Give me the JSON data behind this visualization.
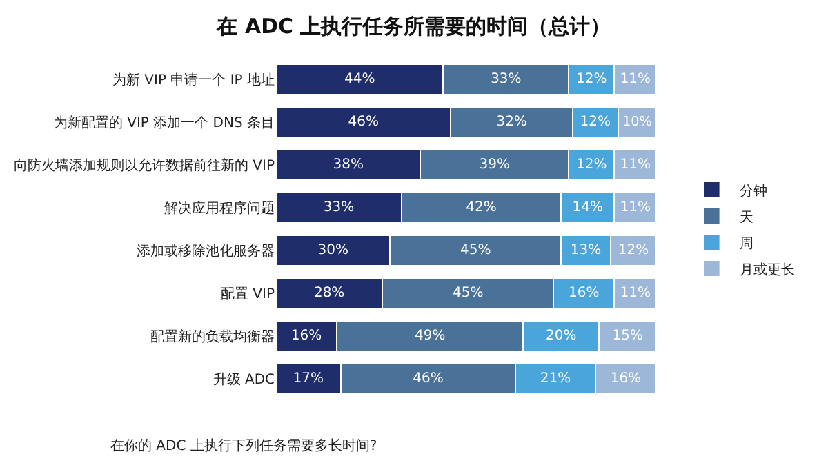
{
  "chart_data": {
    "type": "bar",
    "orientation": "horizontal",
    "stacked": true,
    "legend": "right",
    "title": "在 ADC 上执行任务所需要的时间（总计）",
    "categories": [
      "为新 VIP 申请一个 IP 地址",
      "为新配置的 VIP 添加一个 DNS 条目",
      "向防火墙添加规则以允许数据前往新的 VIP",
      "解决应用程序问题",
      "添加或移除池化服务器",
      "配置 VIP",
      "配置新的负载均衡器",
      "升级 ADC"
    ],
    "series": [
      {
        "name": "分钟",
        "color": "#1f2d6b",
        "values": [
          44,
          46,
          38,
          33,
          30,
          28,
          16,
          17
        ],
        "value_labels": [
          "44%",
          "46%",
          "38%",
          "33%",
          "30%",
          "28%",
          "16%",
          "17%"
        ]
      },
      {
        "name": "天",
        "color": "#4a7198",
        "values": [
          33,
          32,
          39,
          42,
          45,
          45,
          49,
          46
        ],
        "value_labels": [
          "33%",
          "32%",
          "39%",
          "42%",
          "45%",
          "45%",
          "49%",
          "46%"
        ]
      },
      {
        "name": "周",
        "color": "#4aa6da",
        "values": [
          12,
          12,
          12,
          14,
          13,
          16,
          20,
          21
        ],
        "value_labels": [
          "12%",
          "12%",
          "12%",
          "14%",
          "13%",
          "16%",
          "20%",
          "21%"
        ]
      },
      {
        "name": "月或更长",
        "color": "#9db7d9",
        "values": [
          11,
          10,
          11,
          11,
          12,
          11,
          15,
          16
        ],
        "value_labels": [
          "11%",
          "10%",
          "11%",
          "11%",
          "12%",
          "11%",
          "15%",
          "16%"
        ]
      }
    ],
    "annotations": [
      "在你的 ADC 上执行下列任务需要多长时间?"
    ]
  }
}
